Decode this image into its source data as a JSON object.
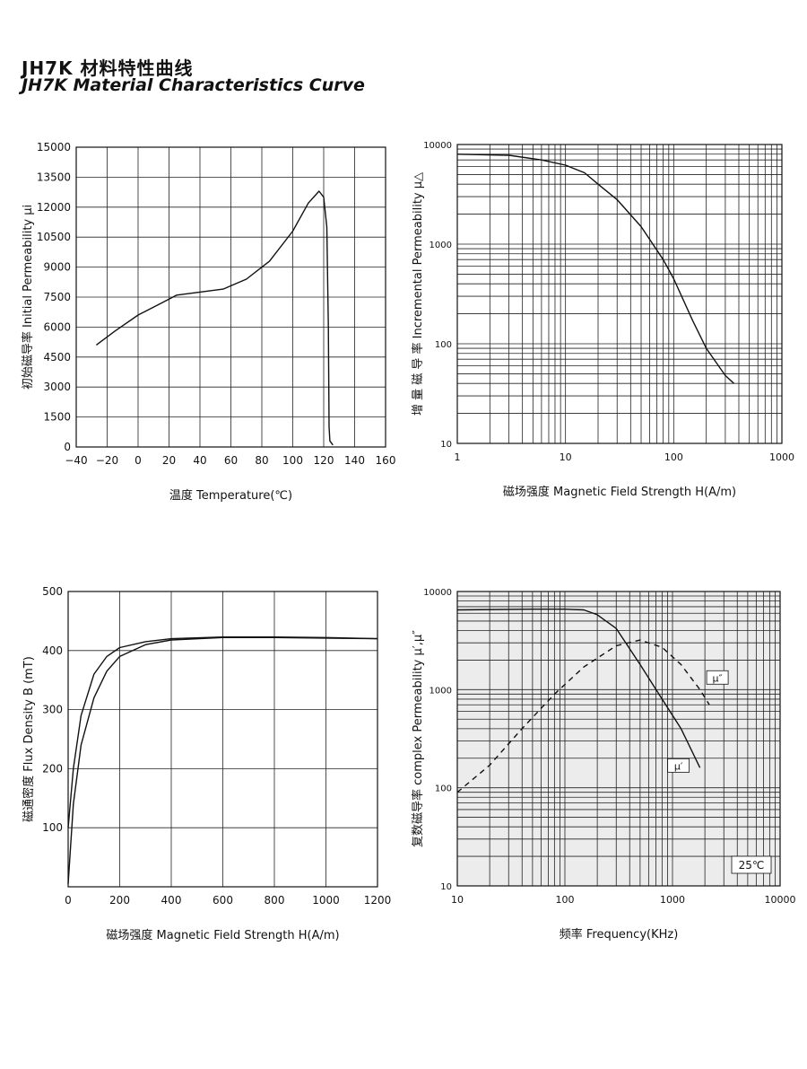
{
  "page": {
    "title_cn": "JH7K  材料特性曲线",
    "title_en": "JH7K  Material Characteristics Curve"
  },
  "chart_data": [
    {
      "id": "temp",
      "type": "line",
      "xlabel": "温度 Temperature(℃)",
      "ylabel": "初始磁导率  Initial Permeability μi",
      "xlim": [
        -40,
        160
      ],
      "ylim": [
        0,
        15000
      ],
      "x_ticks": [
        "−40",
        "−20",
        "0",
        "20",
        "40",
        "60",
        "80",
        "100",
        "120",
        "140",
        "160"
      ],
      "y_ticks": [
        "0",
        "1500",
        "3000",
        "4500",
        "6000",
        "7500",
        "9000",
        "10500",
        "12000",
        "13500",
        "15000"
      ],
      "grid": true,
      "series": [
        {
          "points": [
            [
              -27,
              5100
            ],
            [
              -15,
              5800
            ],
            [
              0,
              6600
            ],
            [
              15,
              7200
            ],
            [
              25,
              7600
            ],
            [
              40,
              7750
            ],
            [
              55,
              7900
            ],
            [
              70,
              8400
            ],
            [
              85,
              9300
            ],
            [
              100,
              10800
            ],
            [
              110,
              12200
            ],
            [
              117,
              12800
            ],
            [
              120,
              12500
            ],
            [
              122,
              11000
            ],
            [
              123,
              6000
            ],
            [
              123.5,
              1000
            ],
            [
              124,
              300
            ],
            [
              126,
              100
            ]
          ]
        }
      ]
    },
    {
      "id": "incremental",
      "type": "line",
      "xlabel": "磁场强度  Magnetic Field Strength H(A/m)",
      "ylabel": "增 量 磁 导 率  Incremental Permeability μ△",
      "xscale": "log",
      "yscale": "log",
      "xlim": [
        1,
        1000
      ],
      "ylim": [
        10,
        10000
      ],
      "x_ticks": [
        "1",
        "10",
        "100",
        "1000"
      ],
      "y_ticks": [
        "10",
        "100",
        "1000",
        "10000"
      ],
      "grid": true,
      "series": [
        {
          "points": [
            [
              1,
              8000
            ],
            [
              3,
              7800
            ],
            [
              6,
              7000
            ],
            [
              10,
              6200
            ],
            [
              15,
              5200
            ],
            [
              20,
              4000
            ],
            [
              30,
              2800
            ],
            [
              50,
              1500
            ],
            [
              80,
              700
            ],
            [
              100,
              450
            ],
            [
              150,
              170
            ],
            [
              200,
              90
            ],
            [
              300,
              48
            ],
            [
              360,
              40
            ]
          ]
        }
      ]
    },
    {
      "id": "bh",
      "type": "line",
      "xlabel": "磁场强度   Magnetic Field Strength H(A/m)",
      "ylabel": "磁通密度 Flux Density B (mT)",
      "xlim": [
        0,
        1200
      ],
      "ylim": [
        0,
        500
      ],
      "x_ticks": [
        "0",
        "200",
        "400",
        "600",
        "800",
        "1000",
        "1200"
      ],
      "y_ticks": [
        "100",
        "200",
        "300",
        "400",
        "500"
      ],
      "grid": true,
      "series": [
        {
          "points": [
            [
              0,
              100
            ],
            [
              20,
              200
            ],
            [
              50,
              290
            ],
            [
              100,
              360
            ],
            [
              150,
              390
            ],
            [
              200,
              405
            ],
            [
              300,
              415
            ],
            [
              400,
              420
            ],
            [
              600,
              423
            ],
            [
              800,
              423
            ],
            [
              1000,
              422
            ],
            [
              1200,
              420
            ]
          ]
        },
        {
          "points": [
            [
              0,
              5
            ],
            [
              20,
              140
            ],
            [
              50,
              240
            ],
            [
              100,
              320
            ],
            [
              150,
              365
            ],
            [
              200,
              390
            ],
            [
              300,
              410
            ],
            [
              400,
              418
            ],
            [
              600,
              422
            ],
            [
              800,
              422
            ],
            [
              1200,
              420
            ]
          ]
        }
      ]
    },
    {
      "id": "complex",
      "type": "line",
      "xlabel": "频率   Frequency(KHz)",
      "ylabel": "复数磁导率   complex Permeability μ′,μ″",
      "xscale": "log",
      "yscale": "log",
      "xlim": [
        10,
        10000
      ],
      "ylim": [
        10,
        10000
      ],
      "x_ticks": [
        "10",
        "100",
        "1000",
        "10000"
      ],
      "y_ticks": [
        "10",
        "100",
        "1000",
        "10000"
      ],
      "grid": true,
      "annotation": "25℃",
      "series": [
        {
          "name": "μ′",
          "points": [
            [
              10,
              6500
            ],
            [
              50,
              6600
            ],
            [
              100,
              6600
            ],
            [
              150,
              6500
            ],
            [
              200,
              5800
            ],
            [
              300,
              4200
            ],
            [
              500,
              1800
            ],
            [
              800,
              800
            ],
            [
              1200,
              400
            ],
            [
              1800,
              160
            ]
          ]
        },
        {
          "name": "μ″",
          "dashed": true,
          "points": [
            [
              10,
              90
            ],
            [
              20,
              170
            ],
            [
              40,
              400
            ],
            [
              80,
              900
            ],
            [
              150,
              1700
            ],
            [
              300,
              2800
            ],
            [
              500,
              3200
            ],
            [
              800,
              2700
            ],
            [
              1200,
              1800
            ],
            [
              1800,
              1000
            ],
            [
              2200,
              700
            ]
          ]
        }
      ]
    }
  ]
}
